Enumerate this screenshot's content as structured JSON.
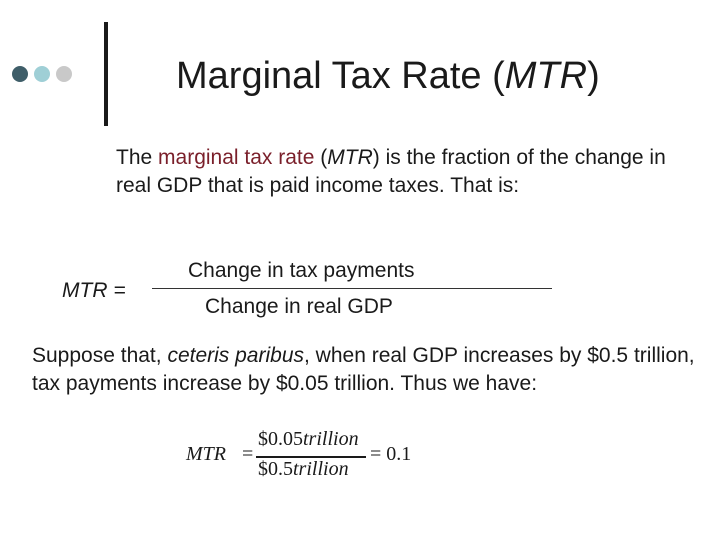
{
  "decor": {
    "dots": [
      {
        "name": "dot-dark",
        "color": "#3f5e69"
      },
      {
        "name": "dot-light",
        "color": "#9fcfd6"
      },
      {
        "name": "dot-gray",
        "color": "#c9c9c9"
      }
    ]
  },
  "title": {
    "text_before": "Marginal Tax Rate (",
    "abbr": "MTR",
    "text_after": ")"
  },
  "para1": {
    "intro": "The ",
    "term": "marginal tax rate",
    "space": " (",
    "abbr": "MTR",
    "rest": ") is the fraction of the change in real GDP that is paid income taxes. That is:"
  },
  "definition": {
    "lhs": "MTR =",
    "numerator": "Change in tax payments",
    "denominator": "Change in real GDP"
  },
  "para2": {
    "start": "Suppose that, ",
    "italic": "ceteris paribus",
    "rest": ", when real GDP increases by $0.5 trillion, tax payments increase by $0.05 trillion. Thus we have:"
  },
  "formula": {
    "lhs": "MTR",
    "eq": "=",
    "num_amount": "$0.05",
    "num_unit": "trillion",
    "den_amount": "$0.5",
    "den_unit": "trillion",
    "result": "= 0.1"
  },
  "colors": {
    "term": "#7a1f2a",
    "text": "#1a1a1a"
  }
}
